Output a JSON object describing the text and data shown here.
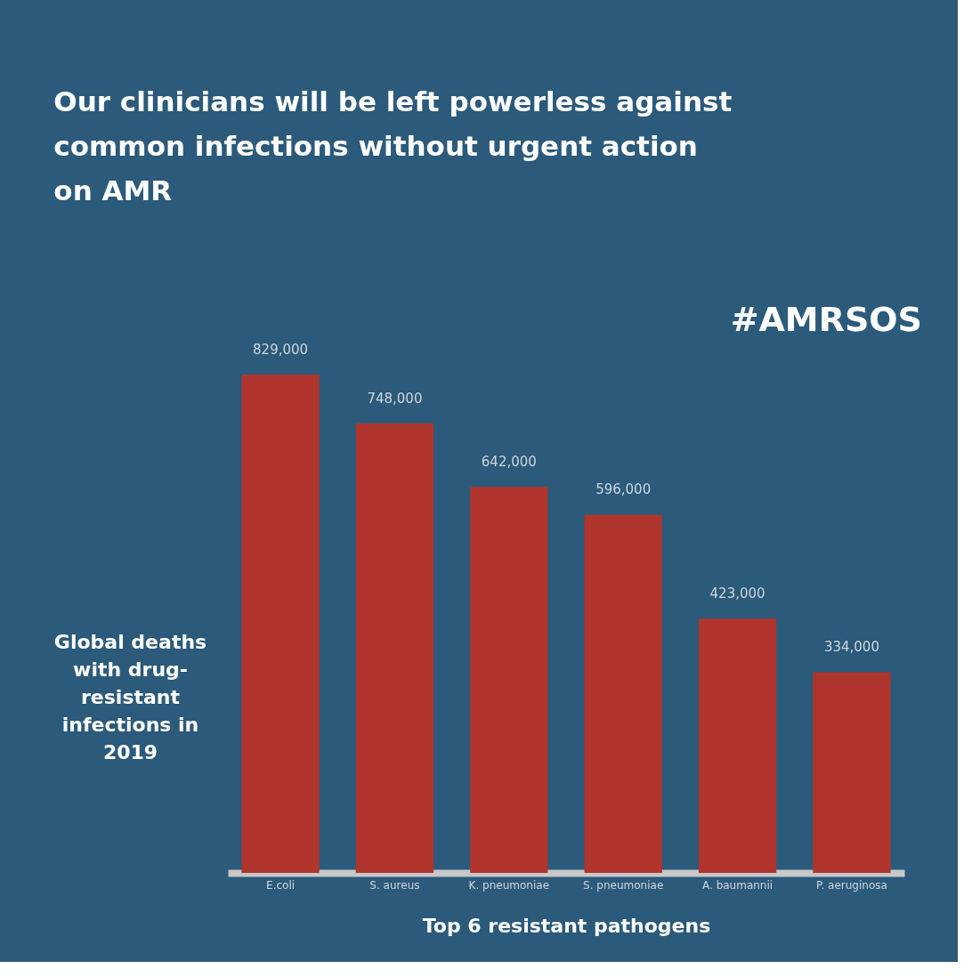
{
  "chart_data": {
    "type": "bar",
    "title": "Our clinicians will be left powerless against\ncommon infections without urgent action\non AMR",
    "annotations": [
      "#AMRSOS"
    ],
    "ylabel": "Global deaths with drug-resistant infections in 2019",
    "xlabel": "Top 6 resistant pathogens",
    "categories": [
      "E.coli",
      "S. aureus",
      "K. pneumoniae",
      "S. pneumoniae",
      "A. baumannii",
      "P. aeruginosa"
    ],
    "values": [
      829000,
      748000,
      642000,
      596000,
      423000,
      334000
    ],
    "color": "#b0352d",
    "value_labels": [
      "829,000",
      "748,000",
      "642,000",
      "596,000",
      "423,000",
      "334,000"
    ],
    "grid": false
  }
}
